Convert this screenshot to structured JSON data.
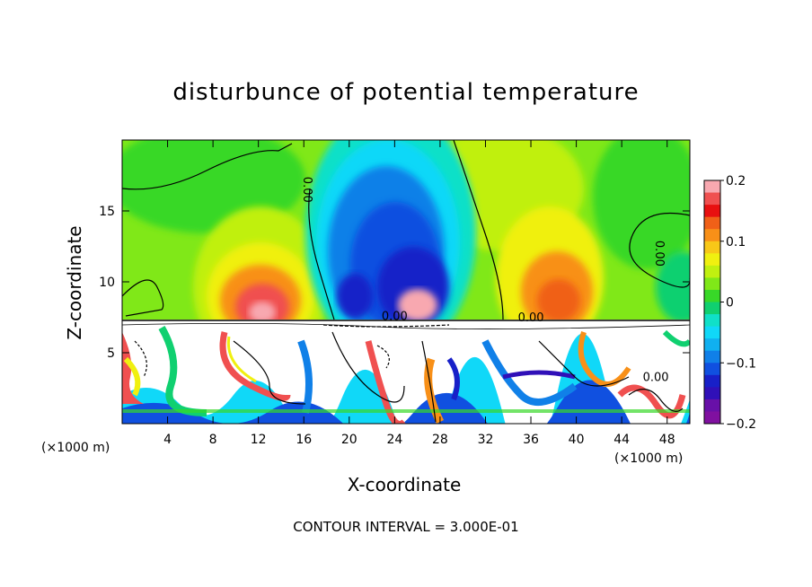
{
  "chart_data": {
    "type": "heatmap",
    "title": "disturbunce of potential temperature",
    "xlabel": "X-coordinate",
    "ylabel": "Z-coordinate",
    "x_unit": "(×1000 m)",
    "z_unit": "(×1000 m)",
    "xlim": [
      0,
      50
    ],
    "ylim": [
      0,
      20
    ],
    "x_ticks": [
      4,
      8,
      12,
      16,
      20,
      24,
      28,
      32,
      36,
      40,
      44,
      48
    ],
    "y_ticks": [
      5,
      10,
      15
    ],
    "colorbar": {
      "range": [
        -0.2,
        0.2
      ],
      "ticks": [
        0.2,
        0.1,
        0,
        -0.1,
        -0.2
      ],
      "tick_labels": [
        "0.2",
        "0.1",
        "0",
        "−0.1",
        "−0.2"
      ],
      "colors": [
        "#f8a8b0",
        "#f05050",
        "#e81010",
        "#f06018",
        "#f89018",
        "#f8c818",
        "#f0f010",
        "#c0f010",
        "#80e818",
        "#38d828",
        "#10d070",
        "#10e0c8",
        "#10d8f8",
        "#10b0f0",
        "#1080e8",
        "#1050e0",
        "#1820c8",
        "#3010b8",
        "#6810a8",
        "#8010a0"
      ]
    },
    "features": [
      {
        "kind": "warm",
        "x": 12.5,
        "z": 9.5,
        "value": 0.2
      },
      {
        "kind": "warm",
        "x": 39,
        "z": 9.5,
        "value": 0.12
      },
      {
        "kind": "cold",
        "x": 22,
        "z": 13,
        "value": -0.18
      },
      {
        "kind": "cold",
        "x": 25,
        "z": 10,
        "value": -0.2
      }
    ],
    "contour_labels": [
      {
        "text": "0.00",
        "x": 16,
        "z": 16.5
      },
      {
        "text": "0.00",
        "x": 47,
        "z": 12
      },
      {
        "text": "0.00",
        "x": 36,
        "z": 7.2
      },
      {
        "text": "0.00",
        "x": 24,
        "z": 7.3
      },
      {
        "text": "0.00",
        "x": 47,
        "z": 3
      }
    ],
    "contour_interval": "CONTOUR INTERVAL = 3.000E-01"
  }
}
